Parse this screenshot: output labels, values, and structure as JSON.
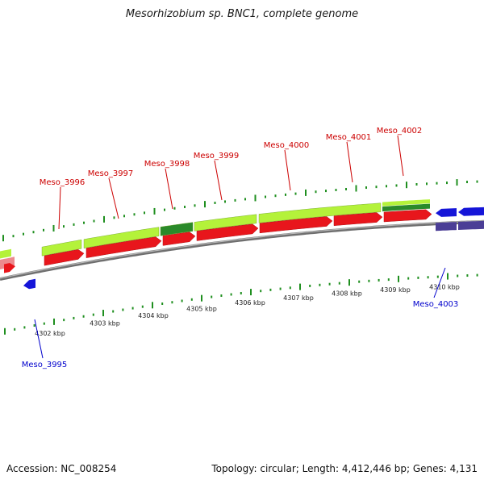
{
  "title": "Mesorhizobium sp. BNC1, complete genome",
  "footer": {
    "accession": "Accession: NC_008254",
    "summary": "Topology: circular; Length: 4,412,446 bp; Genes: 4,131"
  },
  "colors": {
    "forward_gene": "#e8161c",
    "reverse_gene": "#1515d8",
    "reverse_gene_dim": "#4b3e96",
    "forward_gene_faded": "#ec8a8e",
    "cds_light": "#b4f23a",
    "cds_dark": "#2a8a2a",
    "forward_label": "#cc0000",
    "reverse_label": "#0000cc",
    "backbone": "#808080",
    "ticks": "#1f8f1f"
  },
  "scale_ticks": [
    {
      "label": "4302 kbp"
    },
    {
      "label": "4303 kbp"
    },
    {
      "label": "4304 kbp"
    },
    {
      "label": "4305 kbp"
    },
    {
      "label": "4306 kbp"
    },
    {
      "label": "4307 kbp"
    },
    {
      "label": "4308 kbp"
    },
    {
      "label": "4309 kbp"
    },
    {
      "label": "4310 kbp"
    }
  ],
  "forward_genes": [
    {
      "name": "Meso_3996"
    },
    {
      "name": "Meso_3997"
    },
    {
      "name": "Meso_3998"
    },
    {
      "name": "Meso_3999"
    },
    {
      "name": "Meso_4000"
    },
    {
      "name": "Meso_4001"
    },
    {
      "name": "Meso_4002"
    }
  ],
  "reverse_genes": [
    {
      "name": "Meso_3995"
    },
    {
      "name": "Meso_4003"
    }
  ]
}
